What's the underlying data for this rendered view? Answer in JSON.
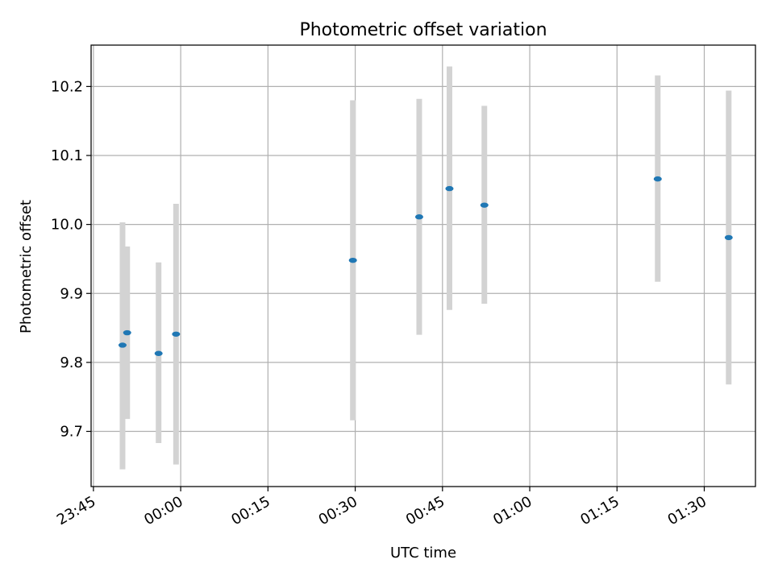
{
  "chart_data": {
    "type": "scatter",
    "title": "Photometric offset variation",
    "xlabel": "UTC time",
    "ylabel": "Photometric offset",
    "x_ticks": [
      "23:45",
      "00:00",
      "00:15",
      "00:30",
      "00:45",
      "01:00",
      "01:15",
      "01:30"
    ],
    "y_ticks": [
      "9.7",
      "9.8",
      "9.9",
      "10.0",
      "10.1",
      "10.2"
    ],
    "xlim": [
      "23:44:36",
      "01:38:48"
    ],
    "ylim": [
      9.62,
      10.26
    ],
    "grid": true,
    "points": [
      {
        "x": "23:50:00",
        "y": 9.825,
        "err_low": 9.645,
        "err_high": 10.003
      },
      {
        "x": "23:50:48",
        "y": 9.843,
        "err_low": 9.718,
        "err_high": 9.968
      },
      {
        "x": "23:56:12",
        "y": 9.813,
        "err_low": 9.683,
        "err_high": 9.945
      },
      {
        "x": "23:59:12",
        "y": 9.841,
        "err_low": 9.652,
        "err_high": 10.03
      },
      {
        "x": "00:29:36",
        "y": 9.948,
        "err_low": 9.716,
        "err_high": 10.18
      },
      {
        "x": "00:41:00",
        "y": 10.011,
        "err_low": 9.84,
        "err_high": 10.182
      },
      {
        "x": "00:46:12",
        "y": 10.052,
        "err_low": 9.876,
        "err_high": 10.229
      },
      {
        "x": "00:52:12",
        "y": 10.028,
        "err_low": 9.885,
        "err_high": 10.172
      },
      {
        "x": "01:22:00",
        "y": 10.066,
        "err_low": 9.917,
        "err_high": 10.216
      },
      {
        "x": "01:34:12",
        "y": 9.981,
        "err_low": 9.768,
        "err_high": 10.194
      }
    ],
    "colors": {
      "point": "#1f77b4",
      "errorbar": "#d3d3d3",
      "grid": "#b0b0b0"
    }
  }
}
